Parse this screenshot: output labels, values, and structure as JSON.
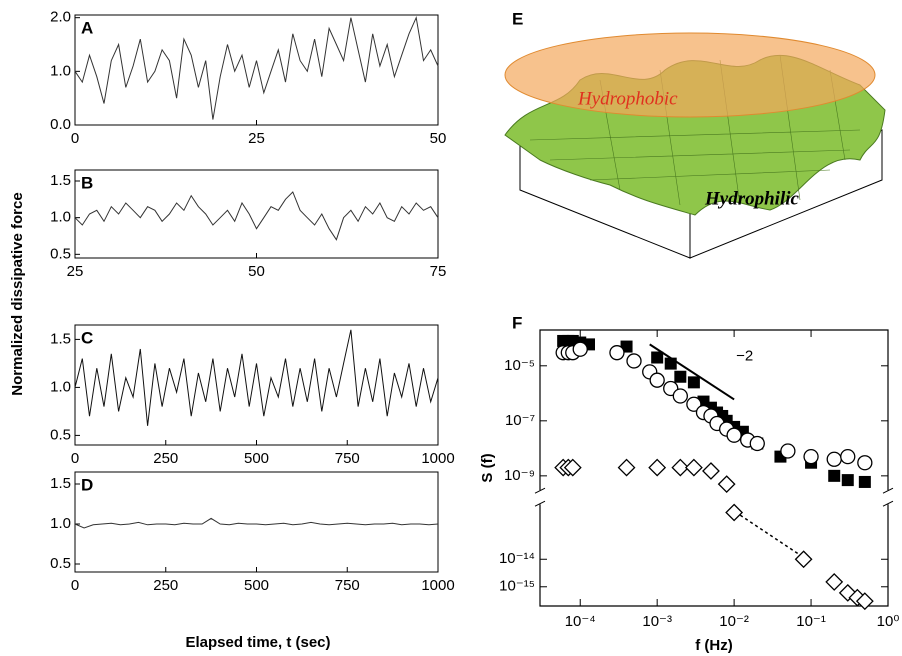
{
  "figure": {
    "ylabel": "Normalized dissipative force",
    "xlabel": "Elapsed time, t (sec)"
  },
  "panel_e": {
    "label": "E",
    "upper_label": "Hydrophobic",
    "lower_label": "Hydrophilic"
  },
  "chart_data": [
    {
      "type": "line",
      "label": "A",
      "color": "#333333",
      "x": [
        0,
        1,
        2,
        3,
        4,
        5,
        6,
        7,
        8,
        9,
        10,
        11,
        12,
        13,
        14,
        15,
        16,
        17,
        18,
        19,
        20,
        21,
        22,
        23,
        24,
        25,
        26,
        27,
        28,
        29,
        30,
        31,
        32,
        33,
        34,
        35,
        36,
        37,
        38,
        39,
        40,
        41,
        42,
        43,
        44,
        45,
        46,
        47,
        48,
        49,
        50
      ],
      "values": [
        1.0,
        0.8,
        1.3,
        0.9,
        0.4,
        1.2,
        1.5,
        0.7,
        1.1,
        1.6,
        0.8,
        1.0,
        1.4,
        1.2,
        0.5,
        1.6,
        1.3,
        0.7,
        1.2,
        0.1,
        0.9,
        1.5,
        1.0,
        1.3,
        0.7,
        1.2,
        0.6,
        1.0,
        1.4,
        0.8,
        1.7,
        1.2,
        1.0,
        1.6,
        0.9,
        1.8,
        1.5,
        1.2,
        2.0,
        1.4,
        0.8,
        1.7,
        1.1,
        1.5,
        0.9,
        1.3,
        1.7,
        2.0,
        1.2,
        1.4,
        1.1
      ],
      "xlim": [
        0,
        50
      ],
      "xticks": [
        0,
        25,
        50
      ],
      "ylim": [
        0,
        2.05
      ],
      "yticks": [
        {
          "value": 0,
          "label": "0.0"
        },
        {
          "value": 1,
          "label": "1.0"
        },
        {
          "value": 2,
          "label": "2.0"
        }
      ]
    },
    {
      "type": "line",
      "label": "B",
      "color": "#333333",
      "x": [
        25,
        26,
        27,
        28,
        29,
        30,
        31,
        32,
        33,
        34,
        35,
        36,
        37,
        38,
        39,
        40,
        41,
        42,
        43,
        44,
        45,
        46,
        47,
        48,
        49,
        50,
        51,
        52,
        53,
        54,
        55,
        56,
        57,
        58,
        59,
        60,
        61,
        62,
        63,
        64,
        65,
        66,
        67,
        68,
        69,
        70,
        71,
        72,
        73,
        74,
        75
      ],
      "values": [
        1.0,
        0.9,
        1.05,
        1.1,
        0.95,
        1.15,
        1.05,
        1.2,
        1.1,
        1.0,
        1.15,
        1.1,
        0.95,
        1.05,
        1.2,
        1.1,
        1.3,
        1.15,
        1.05,
        0.9,
        1.0,
        1.1,
        0.95,
        1.2,
        1.05,
        0.85,
        1.0,
        1.15,
        1.1,
        1.25,
        1.35,
        1.1,
        1.0,
        0.9,
        1.05,
        0.85,
        0.7,
        1.0,
        1.1,
        0.95,
        1.15,
        1.05,
        1.2,
        1.0,
        0.95,
        1.15,
        1.05,
        1.2,
        1.1,
        1.15,
        1.0
      ],
      "xlim": [
        25,
        75
      ],
      "xticks": [
        25,
        50,
        75
      ],
      "ylim": [
        0.45,
        1.65
      ],
      "yticks": [
        0.5,
        {
          "value": 1,
          "label": "1.0"
        },
        1.5
      ]
    },
    {
      "type": "line",
      "label": "C",
      "color": "#111111",
      "x": [
        0,
        20,
        40,
        60,
        80,
        100,
        120,
        140,
        160,
        180,
        200,
        220,
        240,
        260,
        280,
        300,
        320,
        340,
        360,
        380,
        400,
        420,
        440,
        460,
        480,
        500,
        520,
        540,
        560,
        580,
        600,
        620,
        640,
        660,
        680,
        700,
        720,
        740,
        760,
        780,
        800,
        820,
        840,
        860,
        880,
        900,
        920,
        940,
        960,
        980,
        1000
      ],
      "values": [
        1.0,
        1.3,
        0.7,
        1.2,
        0.8,
        1.35,
        0.75,
        1.1,
        0.9,
        1.4,
        0.6,
        1.25,
        0.8,
        1.2,
        0.95,
        1.3,
        0.7,
        1.15,
        0.85,
        1.3,
        0.75,
        1.2,
        0.9,
        1.35,
        0.8,
        1.25,
        0.7,
        1.1,
        0.9,
        1.3,
        0.8,
        1.2,
        0.85,
        1.3,
        0.75,
        1.2,
        0.9,
        1.25,
        1.6,
        0.8,
        1.2,
        0.85,
        1.3,
        0.7,
        1.15,
        0.9,
        1.25,
        0.8,
        1.2,
        0.85,
        1.1
      ],
      "xlim": [
        0,
        1000
      ],
      "xticks": [
        0,
        250,
        500,
        750,
        1000
      ],
      "ylim": [
        0.4,
        1.65
      ],
      "yticks": [
        0.5,
        {
          "value": 1,
          "label": "1.0"
        },
        1.5
      ]
    },
    {
      "type": "line",
      "label": "D",
      "color": "#333333",
      "x": [
        0,
        25,
        50,
        75,
        100,
        125,
        150,
        175,
        200,
        225,
        250,
        275,
        300,
        325,
        350,
        375,
        400,
        425,
        450,
        475,
        500,
        525,
        550,
        575,
        600,
        625,
        650,
        675,
        700,
        725,
        750,
        775,
        800,
        825,
        850,
        875,
        900,
        925,
        950,
        975,
        1000
      ],
      "values": [
        1.0,
        0.95,
        0.99,
        1.0,
        1.01,
        0.99,
        1.0,
        1.02,
        0.99,
        1.0,
        1.0,
        0.99,
        1.01,
        1.0,
        1.0,
        1.07,
        1.0,
        0.99,
        1.01,
        1.0,
        1.0,
        0.99,
        1.0,
        1.01,
        0.99,
        1.0,
        1.02,
        1.0,
        0.99,
        1.0,
        1.01,
        1.0,
        0.99,
        1.0,
        1.0,
        1.01,
        0.99,
        1.0,
        1.0,
        0.99,
        1.0
      ],
      "xlim": [
        0,
        1000
      ],
      "xticks": [
        0,
        250,
        500,
        750,
        1000
      ],
      "ylim": [
        0.4,
        1.65
      ],
      "yticks": [
        0.5,
        {
          "value": 1,
          "label": "1.0"
        },
        1.5
      ]
    },
    {
      "type": "scatter",
      "label": "F",
      "xlabel": "f (Hz)",
      "ylabel": "S (f)",
      "log_x": true,
      "log_y": true,
      "xlim": [
        3e-05,
        1
      ],
      "xticks": [
        {
          "value": 0.0001,
          "label": "10⁻⁴"
        },
        {
          "value": 0.001,
          "label": "10⁻³"
        },
        {
          "value": 0.01,
          "label": "10⁻²"
        },
        {
          "value": 0.1,
          "label": "10⁻¹"
        },
        {
          "value": 1,
          "label": "10⁰"
        }
      ],
      "ylim": [
        2e-16,
        0.0002
      ],
      "ybreak": [
        3e-10,
        1e-12
      ],
      "yticks": [
        {
          "value": 1e-05,
          "label": "10⁻⁵"
        },
        {
          "value": 1e-07,
          "label": "10⁻⁷"
        },
        {
          "value": 1e-09,
          "label": "10⁻⁹"
        },
        {
          "value": 1e-14,
          "label": "10⁻¹⁴"
        },
        {
          "value": 1e-15,
          "label": "10⁻¹⁵"
        }
      ],
      "series": [
        {
          "marker": "square",
          "color": "#000000",
          "x": [
            6e-05,
            7e-05,
            8e-05,
            0.0001,
            0.00013,
            0.0004,
            0.001,
            0.0015,
            0.002,
            0.003,
            0.004,
            0.005,
            0.006,
            0.007,
            0.008,
            0.01,
            0.013,
            0.02,
            0.04,
            0.1,
            0.2,
            0.3,
            0.5
          ],
          "values": [
            8e-05,
            8e-05,
            8e-05,
            7e-05,
            6e-05,
            5e-05,
            2e-05,
            1.2e-05,
            4e-06,
            2.5e-06,
            5e-07,
            3e-07,
            2e-07,
            1.5e-07,
            1e-07,
            6e-08,
            4e-08,
            1.5e-08,
            5e-09,
            3e-09,
            1e-09,
            7e-10,
            6e-10
          ]
        },
        {
          "marker": "circle",
          "color": "#000000",
          "x": [
            6e-05,
            7e-05,
            8e-05,
            0.0001,
            0.0003,
            0.0005,
            0.0008,
            0.001,
            0.0015,
            0.002,
            0.003,
            0.004,
            0.005,
            0.006,
            0.008,
            0.01,
            0.015,
            0.02,
            0.05,
            0.1,
            0.2,
            0.3,
            0.5
          ],
          "values": [
            3e-05,
            3e-05,
            3e-05,
            4e-05,
            3e-05,
            1.5e-05,
            6e-06,
            3e-06,
            1.5e-06,
            8e-07,
            4e-07,
            2e-07,
            1.5e-07,
            8e-08,
            5e-08,
            3e-08,
            2e-08,
            1.5e-08,
            8e-09,
            5e-09,
            4e-09,
            5e-09,
            3e-09
          ]
        },
        {
          "marker": "diamond",
          "color": "#000000",
          "x": [
            6e-05,
            7e-05,
            8e-05,
            0.0004,
            0.001,
            0.002,
            0.003,
            0.005,
            0.008,
            0.01,
            0.08,
            0.2,
            0.3,
            0.4,
            0.5
          ],
          "values": [
            2e-09,
            2e-09,
            2e-09,
            2e-09,
            2e-09,
            2e-09,
            2e-09,
            1.5e-09,
            5e-10,
            5e-13,
            1e-14,
            1.5e-15,
            6e-16,
            4e-16,
            3e-16
          ]
        }
      ],
      "slope_line": {
        "x": [
          0.0008,
          0.01
        ],
        "y": [
          6e-05,
          6e-07
        ],
        "label": "−2"
      },
      "fit_line": {
        "x": [
          0.012,
          0.07
        ],
        "y": [
          4e-13,
          1.5e-14
        ]
      }
    }
  ]
}
